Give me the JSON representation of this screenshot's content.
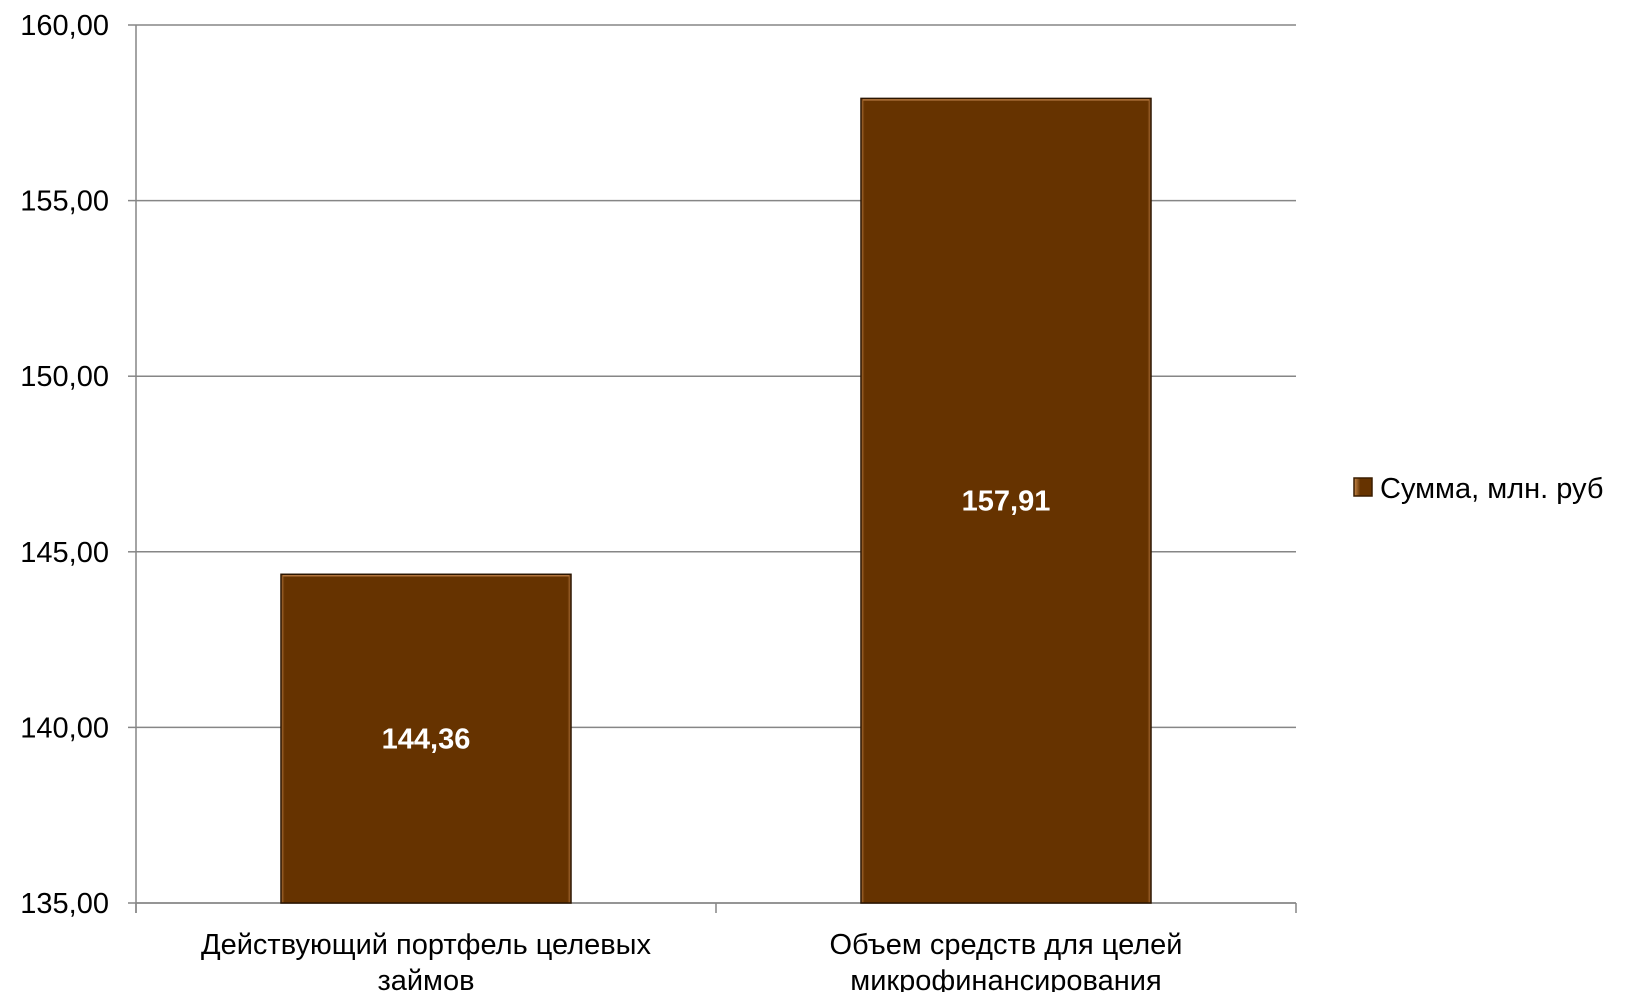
{
  "chart_data": {
    "type": "bar",
    "categories": [
      "Действующий портфель целевых займов",
      "Объем средств для целей микрофинансирования"
    ],
    "category_lines": [
      [
        "Действующий портфель целевых",
        "займов"
      ],
      [
        "Объем средств для целей",
        "микрофинансирования"
      ]
    ],
    "series": [
      {
        "name": "Сумма, млн. руб",
        "values": [
          144.36,
          157.91
        ],
        "data_labels": [
          "144,36",
          "157,91"
        ],
        "color": "#663300"
      }
    ],
    "ylim": [
      135,
      160
    ],
    "y_ticks": [
      135,
      140,
      145,
      150,
      155,
      160
    ],
    "y_tick_labels": [
      "135,00",
      "140,00",
      "145,00",
      "150,00",
      "155,00",
      "160,00"
    ],
    "grid": true,
    "legend_position": "right",
    "colors": {
      "bar": "#663300",
      "bar_highlight": "#b0733c",
      "grid": "#868686",
      "axis": "#868686"
    }
  }
}
